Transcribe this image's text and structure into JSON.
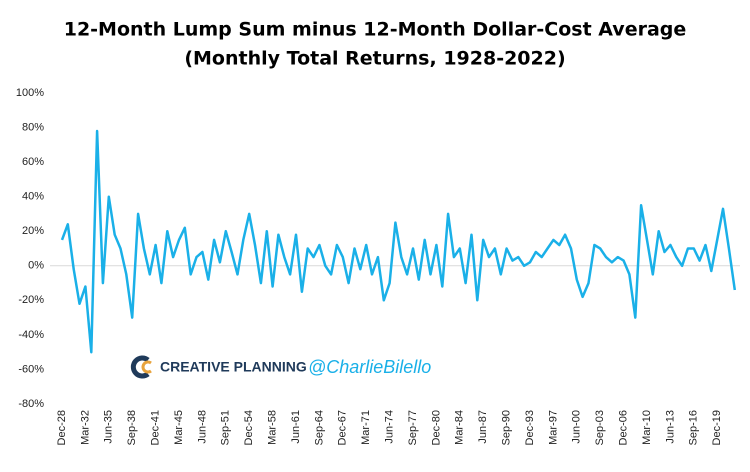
{
  "chart_data": {
    "type": "line",
    "title": "12-Month Lump Sum minus 12-Month Dollar-Cost Average",
    "subtitle": "(Monthly Total Returns, 1928-2022)",
    "watermark": {
      "brand": "CREATIVE PLANNING",
      "handle": "@CharlieBilello"
    },
    "categories": [
      "Dec-28",
      null,
      null,
      null,
      "Mar-32",
      null,
      null,
      null,
      "Jun-35",
      null,
      null,
      null,
      "Sep-38",
      null,
      null,
      null,
      "Dec-41",
      null,
      null,
      null,
      "Mar-45",
      null,
      null,
      null,
      "Jun-48",
      null,
      null,
      null,
      "Sep-51",
      null,
      null,
      null,
      "Dec-54",
      null,
      null,
      null,
      "Mar-58",
      null,
      null,
      null,
      "Jun-61",
      null,
      null,
      null,
      "Sep-64",
      null,
      null,
      null,
      "Dec-67",
      null,
      null,
      null,
      "Mar-71",
      null,
      null,
      null,
      "Jun-74",
      null,
      null,
      null,
      "Sep-77",
      null,
      null,
      null,
      "Dec-80",
      null,
      null,
      null,
      "Mar-84",
      null,
      null,
      null,
      "Jun-87",
      null,
      null,
      null,
      "Sep-90",
      null,
      null,
      null,
      "Dec-93",
      null,
      null,
      null,
      "Mar-97",
      null,
      null,
      null,
      "Jun-00",
      null,
      null,
      null,
      "Sep-03",
      null,
      null,
      null,
      "Dec-06",
      null,
      null,
      null,
      "Mar-10",
      null,
      null,
      null,
      "Jun-13",
      null,
      null,
      null,
      "Sep-16",
      null,
      null,
      null,
      "Dec-19",
      null,
      null,
      null
    ],
    "series": [
      {
        "name": "12-Month Lump Sum minus 12-Month Dollar-Cost Average",
        "color": "#1ab0e8",
        "values": [
          15,
          24,
          -2,
          -22,
          -12,
          -50,
          78,
          -10,
          40,
          18,
          10,
          -5,
          -30,
          30,
          10,
          -5,
          12,
          -10,
          20,
          5,
          15,
          22,
          -5,
          5,
          8,
          -8,
          15,
          2,
          20,
          8,
          -5,
          15,
          30,
          12,
          -10,
          20,
          -12,
          18,
          5,
          -5,
          18,
          -15,
          10,
          5,
          12,
          0,
          -5,
          12,
          5,
          -10,
          10,
          -2,
          12,
          -5,
          5,
          -20,
          -10,
          25,
          5,
          -5,
          10,
          -8,
          15,
          -5,
          12,
          -12,
          30,
          5,
          10,
          -10,
          18,
          -20,
          15,
          5,
          10,
          -5,
          10,
          3,
          5,
          0,
          2,
          8,
          5,
          10,
          15,
          12,
          18,
          10,
          -8,
          -18,
          -10,
          12,
          10,
          5,
          2,
          5,
          3,
          -5,
          -30,
          35,
          15,
          -5,
          20,
          8,
          12,
          5,
          0,
          10,
          10,
          3,
          12,
          -3,
          15,
          33,
          10,
          -14
        ]
      }
    ],
    "ylim": [
      -80,
      100
    ],
    "yticks": [
      {
        "value": -80,
        "label": "-80%"
      },
      {
        "value": -60,
        "label": "-60%"
      },
      {
        "value": -40,
        "label": "-40%"
      },
      {
        "value": -20,
        "label": "-20%"
      },
      {
        "value": 0,
        "label": "0%"
      },
      {
        "value": 20,
        "label": "20%"
      },
      {
        "value": 40,
        "label": "40%"
      },
      {
        "value": 60,
        "label": "60%"
      },
      {
        "value": 80,
        "label": "80%"
      },
      {
        "value": 100,
        "label": "100%"
      }
    ],
    "grid": false
  }
}
